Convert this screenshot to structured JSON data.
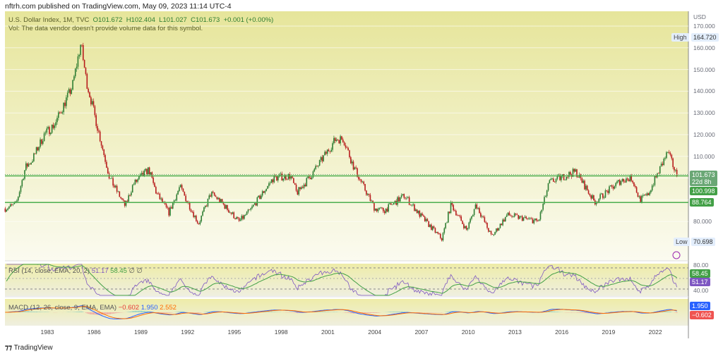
{
  "header": {
    "published": "nftrh.com published on TradingView.com, May 09, 2023 11:14 UTC-4"
  },
  "legend": {
    "symbol": "U.S. Dollar Index, 1M, TVC",
    "open": "O101.672",
    "high": "H102.404",
    "low": "L101.027",
    "close": "C101.673",
    "change": "+0.001 (+0.00%)",
    "vol_note": "Vol: The data vendor doesn't provide volume data for this symbol."
  },
  "price_axis": {
    "currency": "USD",
    "ticks": [
      "170.000",
      "160.000",
      "150.000",
      "140.000",
      "130.000",
      "120.000",
      "110.000",
      "80.000"
    ],
    "high_label": "High",
    "high_value": "164.720",
    "low_label": "Low",
    "low_value": "70.698",
    "last_price": "101.673",
    "countdown": "22d 8h",
    "level1": "100.998",
    "level2": "88.764"
  },
  "rsi": {
    "title": "RSI (14, close, EMA, 20, 2)",
    "rsi_value": "51.17",
    "ma_value": "58.45",
    "extra": "∅ ∅",
    "ticks": [
      "80.00",
      "40.00"
    ]
  },
  "macd": {
    "title": "MACD (12, 26, close, 9, EMA, EMA)",
    "hist": "−0.602",
    "macd": "1.950",
    "signal": "2.552",
    "tag_macd": "1.950",
    "tag_hist": "−0.602"
  },
  "time_axis": [
    "1983",
    "1986",
    "1989",
    "1992",
    "1995",
    "1998",
    "2001",
    "2004",
    "2007",
    "2010",
    "2013",
    "2016",
    "2019",
    "2022"
  ],
  "brand": "TradingView",
  "colors": {
    "up": "#2e7d32",
    "down": "#b71c1c",
    "level": "#4caf50",
    "rsi": "#7e57c2",
    "rsi_ma": "#43a047",
    "macd": "#2962ff",
    "signal": "#ff6d00"
  },
  "chart_data": {
    "type": "candlestick",
    "title": "U.S. Dollar Index, 1M, TVC",
    "ylabel": "USD",
    "ylim": [
      65,
      172
    ],
    "xlim": [
      1980.3,
      2023.4
    ],
    "horizontal_levels": [
      100.998,
      88.764
    ],
    "anchors": [
      [
        1980.3,
        86
      ],
      [
        1981.0,
        88
      ],
      [
        1981.6,
        105
      ],
      [
        1982.0,
        108
      ],
      [
        1982.8,
        120
      ],
      [
        1983.5,
        125
      ],
      [
        1984.0,
        133
      ],
      [
        1984.6,
        142
      ],
      [
        1985.15,
        162
      ],
      [
        1985.5,
        145
      ],
      [
        1986.0,
        130
      ],
      [
        1987.0,
        100
      ],
      [
        1988.0,
        87
      ],
      [
        1988.5,
        97
      ],
      [
        1989.5,
        104
      ],
      [
        1990.0,
        93
      ],
      [
        1990.8,
        84
      ],
      [
        1991.5,
        96
      ],
      [
        1992.7,
        79
      ],
      [
        1993.5,
        93
      ],
      [
        1994.0,
        90
      ],
      [
        1995.3,
        80
      ],
      [
        1996.0,
        85
      ],
      [
        1997.5,
        100
      ],
      [
        1998.6,
        101
      ],
      [
        1999.0,
        93
      ],
      [
        2000.0,
        102
      ],
      [
        2001.5,
        118
      ],
      [
        2002.0,
        118
      ],
      [
        2002.6,
        106
      ],
      [
        2003.0,
        100
      ],
      [
        2004.0,
        86
      ],
      [
        2004.6,
        85
      ],
      [
        2005.9,
        92
      ],
      [
        2006.9,
        83
      ],
      [
        2008.3,
        72
      ],
      [
        2008.9,
        88
      ],
      [
        2009.9,
        76
      ],
      [
        2010.5,
        88
      ],
      [
        2011.5,
        73
      ],
      [
        2012.5,
        83
      ],
      [
        2014.5,
        80
      ],
      [
        2015.2,
        98
      ],
      [
        2016.9,
        103
      ],
      [
        2018.1,
        89
      ],
      [
        2019.8,
        99
      ],
      [
        2020.5,
        100
      ],
      [
        2021.0,
        90
      ],
      [
        2021.5,
        92
      ],
      [
        2022.8,
        112
      ],
      [
        2023.35,
        101.7
      ]
    ]
  }
}
